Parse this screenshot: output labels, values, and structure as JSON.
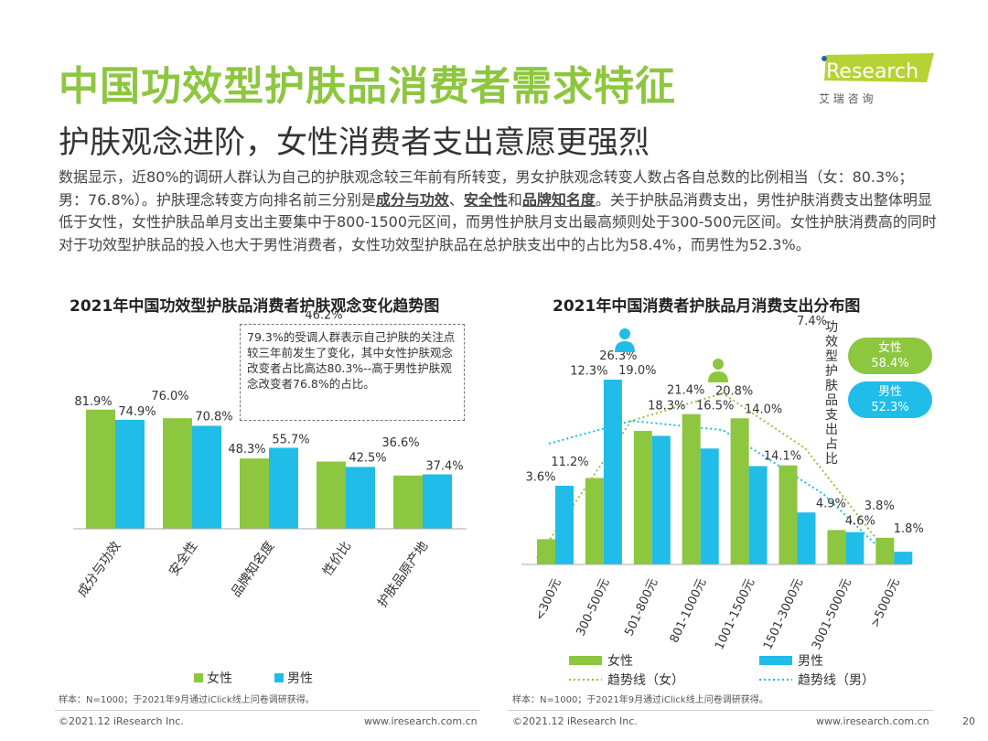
{
  "header": {
    "title": "中国功效型护肤品消费者需求特征",
    "subtitle": "护肤观念进阶，女性消费者支出意愿更强烈",
    "logo_text": "iResearch",
    "logo_sub": "艾 瑞 咨 询"
  },
  "body": {
    "p1": "数据显示，近80%的调研人群认为自己的护肤观念较三年前有所转变，男女护肤观念转变人数占各自总数的比例相当（女：80.3%；男：76.8%）。护肤理念转变方向排名前三分别是",
    "b1": "成分与功效",
    "s1": "、",
    "b2": "安全性",
    "s2": "和",
    "b3": "品牌知名度",
    "p2": "。关于护肤品消费支出，男性护肤消费支出整体明显低于女性，女性护肤品单月支出主要集中于800-1500元区间，而男性护肤月支出最高频则处于300-500元区间。女性护肤消费高的同时对于功效型护肤品的投入也大于男性消费者，女性功效型护肤品在总护肤支出中的占比为58.4%，而男性为52.3%。"
  },
  "colors": {
    "female": "#8dc63f",
    "male": "#1fbde8",
    "title": "#8dc63f"
  },
  "chart_data": [
    {
      "type": "bar",
      "title": "2021年中国功效型护肤品消费者护肤观念变化趋势图",
      "categories": [
        "成分与功效",
        "安全性",
        "品牌知名度",
        "性价比",
        "护肤品原产地"
      ],
      "series": [
        {
          "name": "女性",
          "values": [
            81.9,
            76.0,
            48.3,
            46.2,
            36.6
          ],
          "labels": [
            "81.9%",
            "76.0%",
            "48.3%",
            "46.2%",
            "36.6%"
          ]
        },
        {
          "name": "男性",
          "values": [
            74.9,
            70.8,
            55.7,
            42.5,
            37.4
          ],
          "labels": [
            "74.9%",
            "70.8%",
            "55.7%",
            "42.5%",
            "37.4%"
          ]
        }
      ],
      "annotation": "79.3%的受调人群表示自己护肤的关注点较三年前发生了变化，其中女性护肤观念改变者占比高达80.3%--高于男性护肤观念改变者76.8%的占比。",
      "legend_position": "bottom",
      "note": "样本：N=1000；于2021年9月通过iClick线上问卷调研获得。"
    },
    {
      "type": "bar",
      "title": "2021年中国消费者护肤品月消费支出分布图",
      "categories": [
        "<300元",
        "300-500元",
        "501-800元",
        "801-1000元",
        "1001-1500元",
        "1501-3000元",
        "3001-5000元",
        ">5000元"
      ],
      "series": [
        {
          "name": "女性",
          "values": [
            3.6,
            12.3,
            19.0,
            21.4,
            20.8,
            14.1,
            4.9,
            3.8
          ],
          "labels": [
            "3.6%",
            "12.3%",
            "19.0%",
            "21.4%",
            "20.8%",
            "14.1%",
            "4.9%",
            "3.8%"
          ]
        },
        {
          "name": "男性",
          "values": [
            11.2,
            26.3,
            18.3,
            16.5,
            14.0,
            7.4,
            4.6,
            1.8
          ],
          "labels": [
            "11.2%",
            "26.3%",
            "18.3%",
            "16.5%",
            "14.0%",
            "7.4%",
            "4.6%",
            "1.8%"
          ]
        }
      ],
      "trendlines": [
        "趋势线（女）",
        "趋势线（男）"
      ],
      "side_label": "功效型护肤品支出占比",
      "side_values": [
        {
          "name": "女性",
          "value": "58.4%"
        },
        {
          "name": "男性",
          "value": "52.3%"
        }
      ],
      "legend_position": "bottom",
      "note": "样本：N=1000；于2021年9月通过iClick线上问卷调研获得。"
    }
  ],
  "footer": {
    "copy1": "©2021.12 iResearch Inc.",
    "url1": "www.iresearch.com.cn",
    "copy2": "©2021.12 iResearch Inc.",
    "url2": "www.iresearch.com.cn",
    "page": "20"
  }
}
